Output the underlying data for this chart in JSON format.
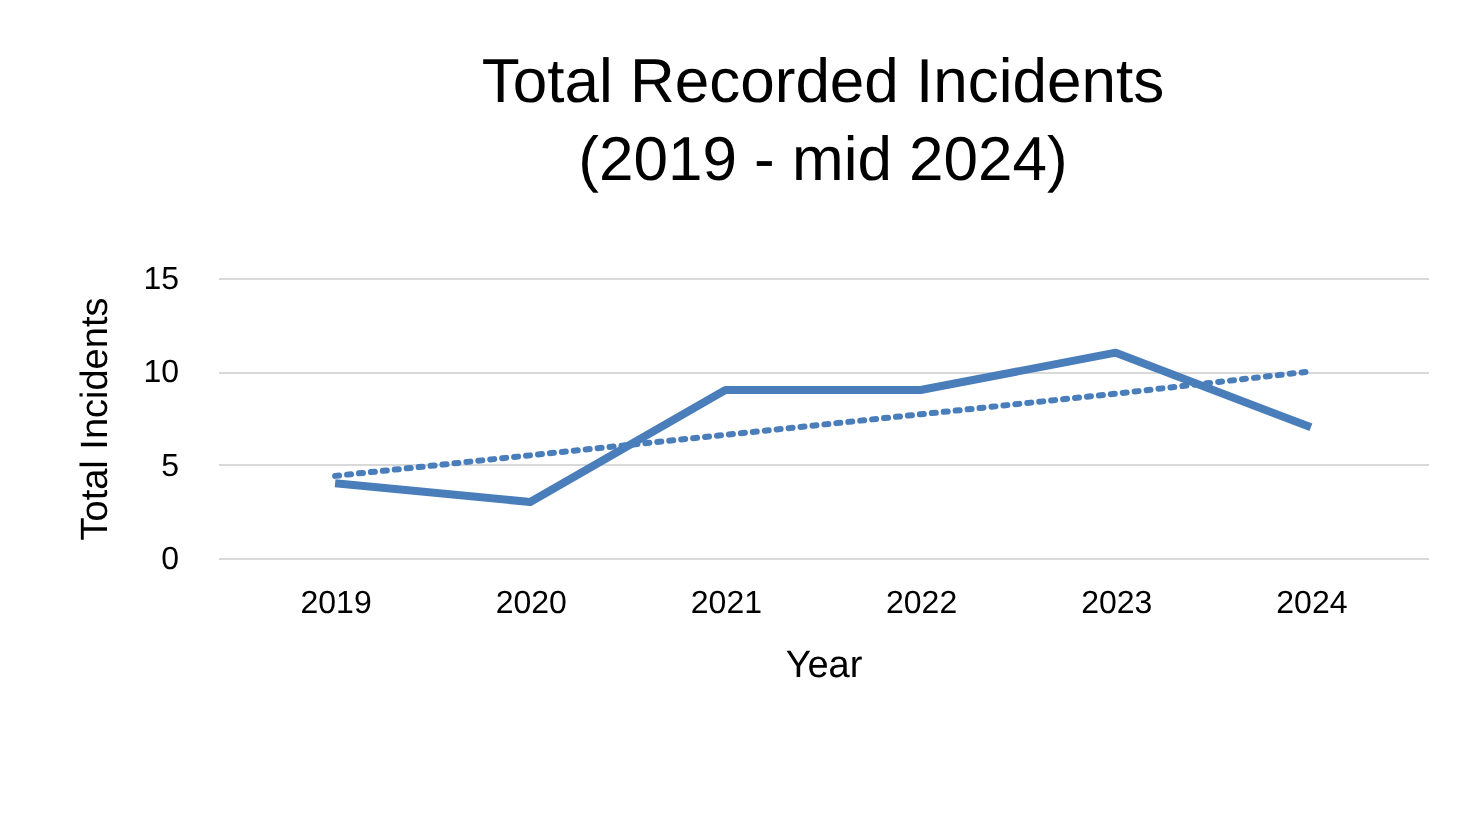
{
  "chart_data": {
    "type": "line",
    "title": "Total Recorded Incidents",
    "subtitle": "(2019 - mid 2024)",
    "xlabel": "Year",
    "ylabel": "Total Incidents",
    "categories": [
      "2019",
      "2020",
      "2021",
      "2022",
      "2023",
      "2024"
    ],
    "series": [
      {
        "color": "#4a7ebb",
        "values": [
          4,
          3,
          9,
          9,
          11,
          7
        ],
        "line_style": "solid"
      },
      {
        "type": "line",
        "color": "#4a7ebb",
        "values": [
          4.4,
          5.5,
          6.6,
          7.7,
          8.8,
          10.0
        ],
        "line_style": "dotted"
      }
    ],
    "ylim": [
      0,
      15
    ],
    "yticks": [
      0,
      5,
      10,
      15
    ],
    "grid": "y",
    "marker": "none"
  }
}
